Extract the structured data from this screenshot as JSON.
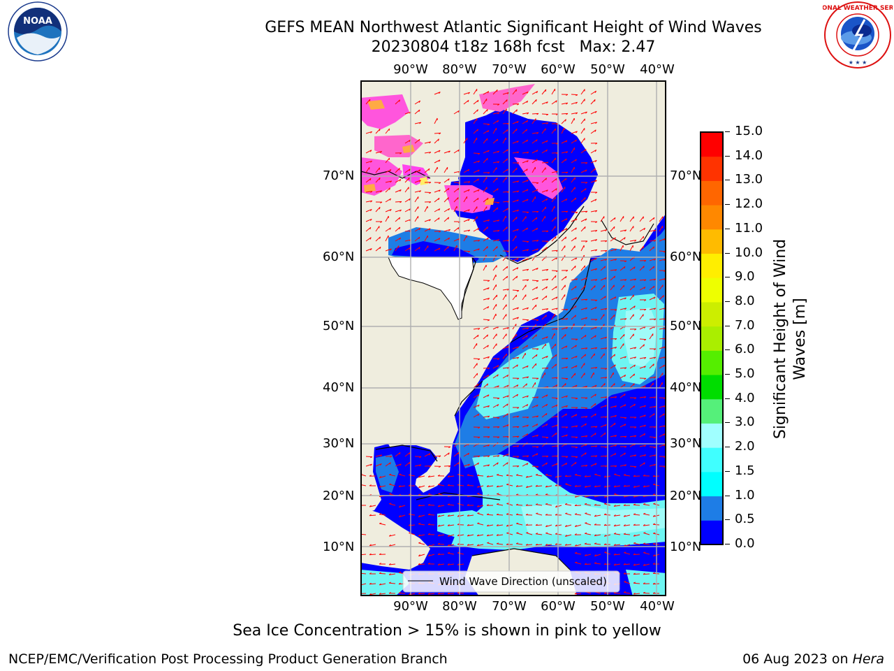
{
  "title": {
    "line1": "GEFS MEAN Northwest Atlantic Significant Height of Wind Waves",
    "line2": "20230804 t18z 168h fcst   Max: 2.47"
  },
  "logos": {
    "left": {
      "icon": "noaa-logo",
      "text": "NOAA"
    },
    "right": {
      "icon": "nws-logo",
      "text": "NATIONAL WEATHER SERVICE"
    }
  },
  "map": {
    "lon_ticks": [
      "90°W",
      "80°W",
      "70°W",
      "60°W",
      "50°W",
      "40°W"
    ],
    "lat_ticks": [
      "70°N",
      "60°N",
      "50°N",
      "40°N",
      "30°N",
      "20°N",
      "10°N"
    ],
    "legend": "Wind Wave Direction (unscaled)",
    "colors": {
      "land": "#efedde",
      "low": "#0000ff",
      "mid": "#1e7de6",
      "cyan": "#00ffff",
      "lightcyan": "#6ef5f2",
      "ice": "#ff44dd",
      "ice_yellow": "#ffaa44",
      "arrow": "#ff0000",
      "grid": "#b0b0b0"
    }
  },
  "colorbar": {
    "title": "Significant Height of Wind Waves [m]",
    "ticks": [
      "0.0",
      "0.5",
      "1.0",
      "1.5",
      "2.0",
      "3.0",
      "4.0",
      "5.0",
      "6.0",
      "7.0",
      "8.0",
      "9.0",
      "10.0",
      "11.0",
      "12.0",
      "13.0",
      "14.0",
      "15.0"
    ],
    "colors": [
      "#0000ff",
      "#1e7de6",
      "#00ffff",
      "#40ffff",
      "#a0ffff",
      "#55f07a",
      "#00dd00",
      "#55ee00",
      "#aaee00",
      "#ccee00",
      "#eeff00",
      "#ffee00",
      "#ffbb00",
      "#ff8800",
      "#ff6600",
      "#ff3300",
      "#ff0000"
    ]
  },
  "caption": "Sea Ice Concentration > 15% is shown in pink to yellow",
  "footer": {
    "left": "NCEP/EMC/Verification Post Processing Product Generation Branch",
    "right_date": "06 Aug 2023 on ",
    "right_host": "Hera"
  }
}
